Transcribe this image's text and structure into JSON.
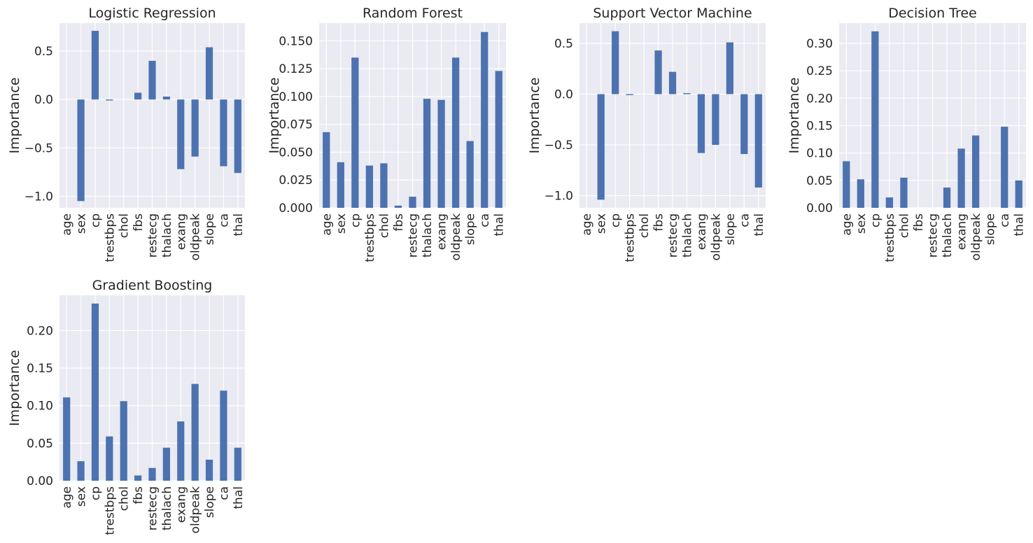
{
  "chart_data": [
    {
      "type": "bar",
      "title": "Logistic Regression",
      "ylabel": "Importance",
      "categories": [
        "age",
        "sex",
        "cp",
        "trestbps",
        "chol",
        "fbs",
        "restecg",
        "thalach",
        "exang",
        "oldpeak",
        "slope",
        "ca",
        "thal"
      ],
      "values": [
        0.0,
        -1.05,
        0.71,
        -0.01,
        0.0,
        0.07,
        0.4,
        0.03,
        -0.72,
        -0.59,
        0.54,
        -0.69,
        -0.76
      ],
      "ylim": [
        -1.12,
        0.79
      ],
      "yticks": [
        -1.0,
        -0.5,
        0.0,
        0.5
      ],
      "ytick_labels": [
        "−1.0",
        "−0.5",
        "0.0",
        "0.5"
      ],
      "grid": true
    },
    {
      "type": "bar",
      "title": "Random Forest",
      "ylabel": "Importance",
      "categories": [
        "age",
        "sex",
        "cp",
        "trestbps",
        "chol",
        "fbs",
        "restecg",
        "thalach",
        "exang",
        "oldpeak",
        "slope",
        "ca",
        "thal"
      ],
      "values": [
        0.068,
        0.041,
        0.135,
        0.038,
        0.04,
        0.002,
        0.01,
        0.098,
        0.097,
        0.135,
        0.06,
        0.158,
        0.123
      ],
      "ylim": [
        0,
        0.166
      ],
      "yticks": [
        0.0,
        0.025,
        0.05,
        0.075,
        0.1,
        0.125,
        0.15
      ],
      "ytick_labels": [
        "0.000",
        "0.025",
        "0.050",
        "0.075",
        "0.100",
        "0.125",
        "0.150"
      ],
      "grid": true
    },
    {
      "type": "bar",
      "title": "Support Vector Machine",
      "ylabel": "Importance",
      "categories": [
        "age",
        "sex",
        "cp",
        "trestbps",
        "chol",
        "fbs",
        "restecg",
        "thalach",
        "exang",
        "oldpeak",
        "slope",
        "ca",
        "thal"
      ],
      "values": [
        0.0,
        -1.04,
        0.62,
        -0.01,
        0.0,
        0.43,
        0.22,
        0.01,
        -0.58,
        -0.5,
        0.51,
        -0.59,
        -0.92
      ],
      "ylim": [
        -1.12,
        0.7
      ],
      "yticks": [
        -1.0,
        -0.5,
        0.0,
        0.5
      ],
      "ytick_labels": [
        "−1.0",
        "−0.5",
        "0.0",
        "0.5"
      ],
      "grid": true
    },
    {
      "type": "bar",
      "title": "Decision Tree",
      "ylabel": "Importance",
      "categories": [
        "age",
        "sex",
        "cp",
        "trestbps",
        "chol",
        "fbs",
        "restecg",
        "thalach",
        "exang",
        "oldpeak",
        "slope",
        "ca",
        "thal"
      ],
      "values": [
        0.085,
        0.052,
        0.322,
        0.019,
        0.055,
        0.0,
        0.0,
        0.037,
        0.108,
        0.132,
        0.0,
        0.148,
        0.05
      ],
      "ylim": [
        0,
        0.337
      ],
      "yticks": [
        0.0,
        0.05,
        0.1,
        0.15,
        0.2,
        0.25,
        0.3
      ],
      "ytick_labels": [
        "0.00",
        "0.05",
        "0.10",
        "0.15",
        "0.20",
        "0.25",
        "0.30"
      ],
      "grid": true
    },
    {
      "type": "bar",
      "title": "Gradient Boosting",
      "ylabel": "Importance",
      "categories": [
        "age",
        "sex",
        "cp",
        "trestbps",
        "chol",
        "fbs",
        "restecg",
        "thalach",
        "exang",
        "oldpeak",
        "slope",
        "ca",
        "thal"
      ],
      "values": [
        0.111,
        0.026,
        0.236,
        0.059,
        0.106,
        0.007,
        0.017,
        0.044,
        0.079,
        0.129,
        0.028,
        0.12,
        0.044
      ],
      "ylim": [
        0,
        0.247
      ],
      "yticks": [
        0.0,
        0.05,
        0.1,
        0.15,
        0.2
      ],
      "ytick_labels": [
        "0.00",
        "0.05",
        "0.10",
        "0.15",
        "0.20"
      ],
      "grid": true
    }
  ]
}
